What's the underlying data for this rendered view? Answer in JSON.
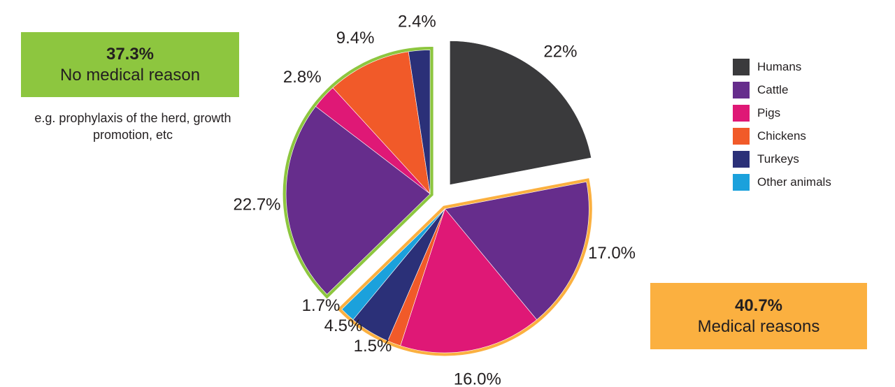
{
  "chart_data": {
    "type": "pie",
    "slices": [
      {
        "group": "top",
        "category": "Humans",
        "value": 22,
        "label": "22%",
        "color": "#3a3a3c"
      },
      {
        "group": "medical",
        "category": "Cattle",
        "value": 17.0,
        "label": "17.0%",
        "color": "#662d8c"
      },
      {
        "group": "medical",
        "category": "Pigs",
        "value": 16.0,
        "label": "16.0%",
        "color": "#df1876"
      },
      {
        "group": "medical",
        "category": "Chickens",
        "value": 1.5,
        "label": "1.5%",
        "color": "#f15a29"
      },
      {
        "group": "medical",
        "category": "Turkeys",
        "value": 4.5,
        "label": "4.5%",
        "color": "#2b3078"
      },
      {
        "group": "medical",
        "category": "Other animals",
        "value": 1.7,
        "label": "1.7%",
        "color": "#1ba1dc"
      },
      {
        "group": "nonmedical",
        "category": "Cattle",
        "value": 22.7,
        "label": "22.7%",
        "color": "#662d8c"
      },
      {
        "group": "nonmedical",
        "category": "Pigs",
        "value": 2.8,
        "label": "2.8%",
        "color": "#df1876"
      },
      {
        "group": "nonmedical",
        "category": "Chickens",
        "value": 9.4,
        "label": "9.4%",
        "color": "#f15a29"
      },
      {
        "group": "nonmedical",
        "category": "Turkeys",
        "value": 2.4,
        "label": "2.4%",
        "color": "#2b3078"
      }
    ],
    "groups": {
      "nonmedical": {
        "percent": "37.3%",
        "label": "No medical reason",
        "note": "e.g. prophylaxis of the herd, growth promotion, etc",
        "color": "#8dc63f"
      },
      "medical": {
        "percent": "40.7%",
        "label": "Medical reasons",
        "color": "#fbb040"
      }
    },
    "legend": [
      {
        "label": "Humans",
        "color": "#3a3a3c"
      },
      {
        "label": "Cattle",
        "color": "#662d8c"
      },
      {
        "label": "Pigs",
        "color": "#df1876"
      },
      {
        "label": "Chickens",
        "color": "#f15a29"
      },
      {
        "label": "Turkeys",
        "color": "#2b3078"
      },
      {
        "label": "Other animals",
        "color": "#1ba1dc"
      }
    ],
    "legend_position": "right"
  }
}
